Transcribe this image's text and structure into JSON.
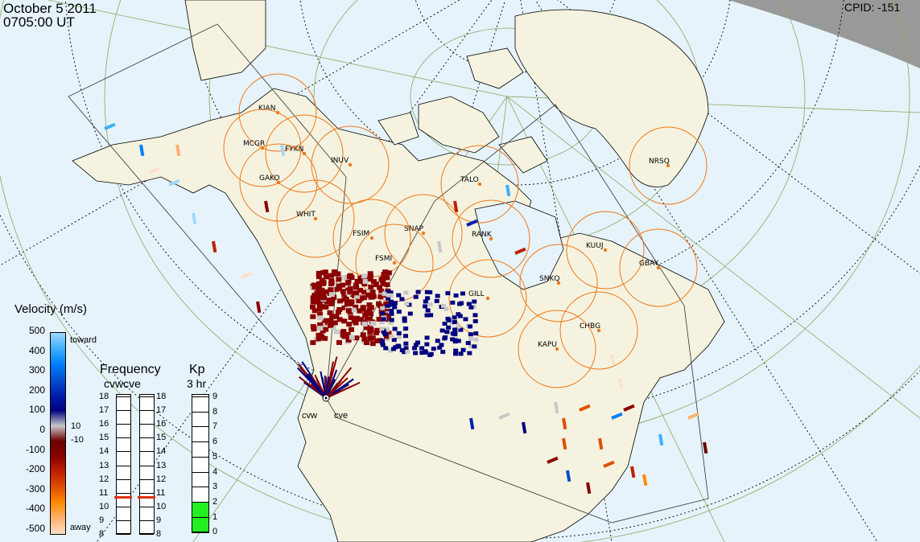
{
  "header": {
    "date": "October  5 2011",
    "time": "0705:00 UT",
    "cpid": "CPID:  -151"
  },
  "stations": [
    {
      "code": "KIAN"
    },
    {
      "code": "MCGR"
    },
    {
      "code": "FYKN"
    },
    {
      "code": "INUV"
    },
    {
      "code": "GAKO"
    },
    {
      "code": "WHIT"
    },
    {
      "code": "FSIM"
    },
    {
      "code": "SNAP"
    },
    {
      "code": "FSMI"
    },
    {
      "code": "RANK"
    },
    {
      "code": "TALO"
    },
    {
      "code": "NRSQ"
    },
    {
      "code": "KUUJ"
    },
    {
      "code": "GBAY"
    },
    {
      "code": "SNKQ"
    },
    {
      "code": "GILL"
    },
    {
      "code": "CHBG"
    },
    {
      "code": "KAPU"
    }
  ],
  "radars": [
    {
      "code": "cvw"
    },
    {
      "code": "cve"
    }
  ],
  "velocity_scale": {
    "title": "Velocity (m/s)",
    "ticks": [
      "500",
      "400",
      "300",
      "200",
      "100",
      "0",
      "-100",
      "-200",
      "-300",
      "-400",
      "-500"
    ],
    "toward_label": "toward",
    "away_label": "away",
    "threshold_pos": "10",
    "threshold_neg": "-10",
    "colors": [
      "#ffe0c8",
      "#ffb070",
      "#ff8c00",
      "#e05000",
      "#c02000",
      "#8b0000",
      "#6b0000",
      "#c8c8c8",
      "#000080",
      "#0020b0",
      "#0050d0",
      "#0080ff",
      "#40b0ff",
      "#a0d8ff"
    ]
  },
  "frequency": {
    "title": "Frequency",
    "subtitle": "cvwcve",
    "ticks": [
      "18",
      "17",
      "16",
      "15",
      "14",
      "13",
      "12",
      "11",
      "10",
      "9",
      "8"
    ],
    "cvw_value_mhz": 10.7,
    "cve_value_mhz": 10.7,
    "marker_color": "#e03010"
  },
  "kp": {
    "title": "Kp",
    "subtitle": "3 hr",
    "ticks": [
      "9",
      "8",
      "7",
      "6",
      "5",
      "4",
      "3",
      "2",
      "1",
      "0"
    ],
    "value": 2,
    "fill_color": "#22ee22"
  }
}
